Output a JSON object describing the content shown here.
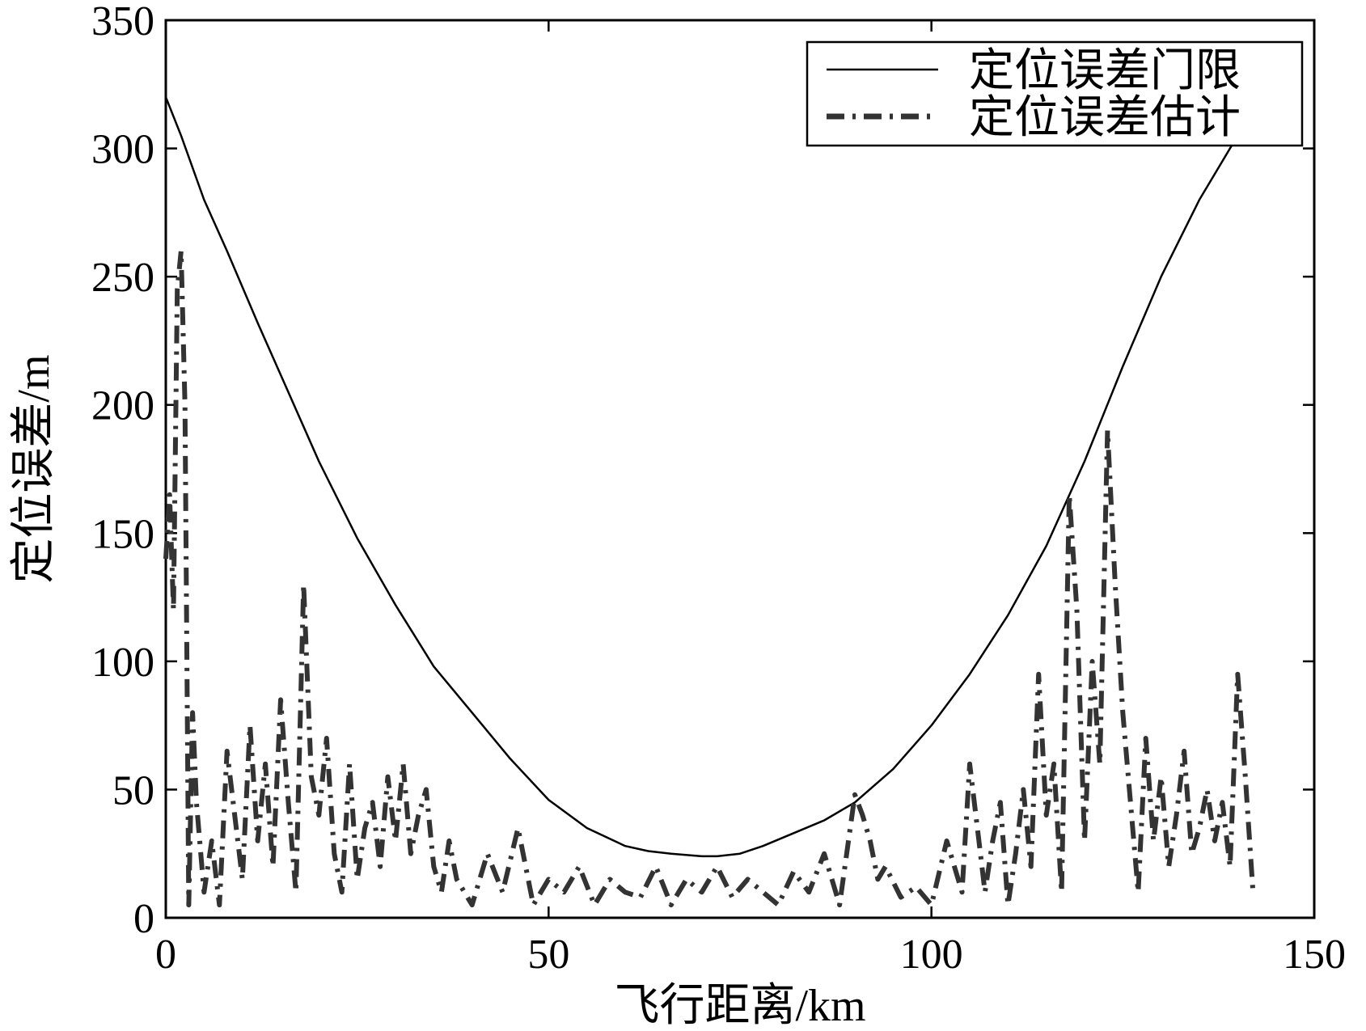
{
  "chart_data": {
    "type": "line",
    "title": "",
    "xlabel": "飞行距离/km",
    "ylabel": "定位误差/m",
    "xlim": [
      0,
      150
    ],
    "ylim": [
      0,
      350
    ],
    "xticks": [
      "0",
      "50",
      "100",
      "150"
    ],
    "yticks": [
      "0",
      "50",
      "100",
      "150",
      "200",
      "250",
      "300",
      "350"
    ],
    "grid": false,
    "legend_position": "top-right",
    "series": [
      {
        "name": "定位误差门限",
        "style": "solid",
        "color": "#000000",
        "x": [
          0,
          2,
          5,
          8,
          12,
          16,
          20,
          25,
          30,
          35,
          40,
          45,
          50,
          55,
          60,
          63,
          66,
          70,
          72,
          75,
          78,
          82,
          86,
          90,
          95,
          100,
          105,
          110,
          115,
          120,
          125,
          130,
          135,
          138,
          140
        ],
        "y": [
          320,
          305,
          280,
          260,
          232,
          205,
          178,
          148,
          122,
          98,
          80,
          62,
          46,
          35,
          28,
          26,
          25,
          24,
          24,
          25,
          28,
          33,
          38,
          45,
          58,
          75,
          95,
          118,
          145,
          178,
          215,
          250,
          280,
          295,
          305
        ]
      },
      {
        "name": "定位误差估计",
        "style": "dashdot",
        "color": "#333333",
        "x": [
          0,
          0.5,
          1,
          1.5,
          2,
          2.5,
          3,
          3.5,
          4,
          5,
          6,
          7,
          8,
          9,
          10,
          11,
          12,
          13,
          14,
          15,
          16,
          17,
          18,
          19,
          20,
          21,
          22,
          23,
          24,
          25,
          26,
          27,
          28,
          29,
          30,
          31,
          32,
          33,
          34,
          35,
          36,
          37,
          38,
          40,
          42,
          44,
          46,
          48,
          50,
          52,
          54,
          56,
          58,
          60,
          62,
          64,
          66,
          68,
          70,
          72,
          74,
          76,
          78,
          80,
          82,
          84,
          86,
          88,
          90,
          91,
          92,
          93,
          94,
          96,
          98,
          100,
          102,
          104,
          105,
          106,
          107,
          108,
          109,
          110,
          111,
          112,
          113,
          114,
          115,
          116,
          117,
          118,
          119,
          120,
          121,
          122,
          123,
          124,
          125,
          126,
          127,
          128,
          129,
          130,
          131,
          132,
          133,
          134,
          135,
          136,
          137,
          138,
          139,
          140,
          141,
          142
        ],
        "y": [
          140,
          165,
          120,
          245,
          260,
          200,
          5,
          80,
          45,
          10,
          30,
          5,
          65,
          40,
          15,
          75,
          30,
          60,
          20,
          85,
          45,
          10,
          130,
          55,
          40,
          70,
          25,
          10,
          60,
          15,
          35,
          45,
          20,
          55,
          30,
          60,
          25,
          40,
          50,
          20,
          10,
          30,
          15,
          5,
          25,
          10,
          35,
          5,
          15,
          10,
          20,
          5,
          15,
          10,
          8,
          20,
          5,
          15,
          10,
          20,
          8,
          15,
          10,
          5,
          18,
          10,
          25,
          5,
          48,
          40,
          30,
          15,
          20,
          8,
          12,
          5,
          30,
          10,
          60,
          35,
          10,
          30,
          45,
          5,
          25,
          50,
          20,
          95,
          40,
          60,
          10,
          165,
          120,
          30,
          100,
          60,
          190,
          130,
          80,
          45,
          10,
          70,
          30,
          55,
          20,
          40,
          65,
          25,
          35,
          50,
          30,
          45,
          20,
          95,
          55,
          10
        ]
      }
    ]
  }
}
